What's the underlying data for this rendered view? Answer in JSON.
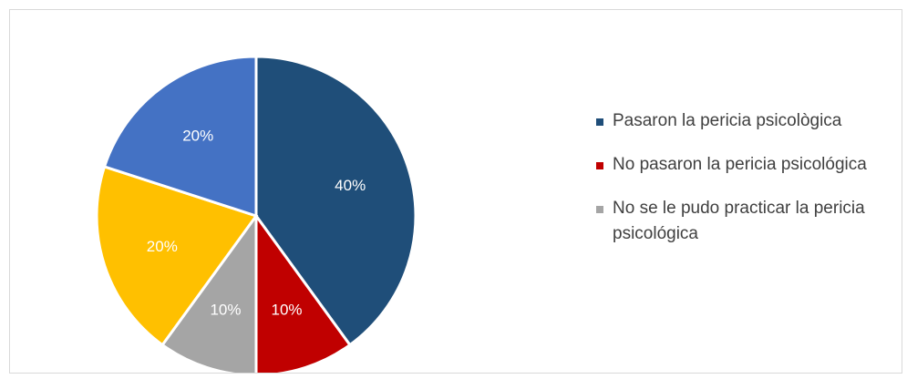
{
  "chart_data": {
    "type": "pie",
    "title": "",
    "slices": [
      {
        "label": "Pasaron la pericia psicològica",
        "value": 40,
        "display": "40%",
        "color": "#1f4e79",
        "in_legend": true
      },
      {
        "label": "No pasaron la pericia psicológica",
        "value": 10,
        "display": "10%",
        "color": "#c00000",
        "in_legend": true
      },
      {
        "label": "No se le pudo practicar la pericia psicológica",
        "value": 10,
        "display": "10%",
        "color": "#a5a5a5",
        "in_legend": true
      },
      {
        "label": "",
        "value": 20,
        "display": "20%",
        "color": "#ffc000",
        "in_legend": false
      },
      {
        "label": "",
        "value": 20,
        "display": "20%",
        "color": "#4472c4",
        "in_legend": false
      }
    ],
    "start_angle": "12 o'clock",
    "direction": "clockwise",
    "legend_position": "right"
  }
}
